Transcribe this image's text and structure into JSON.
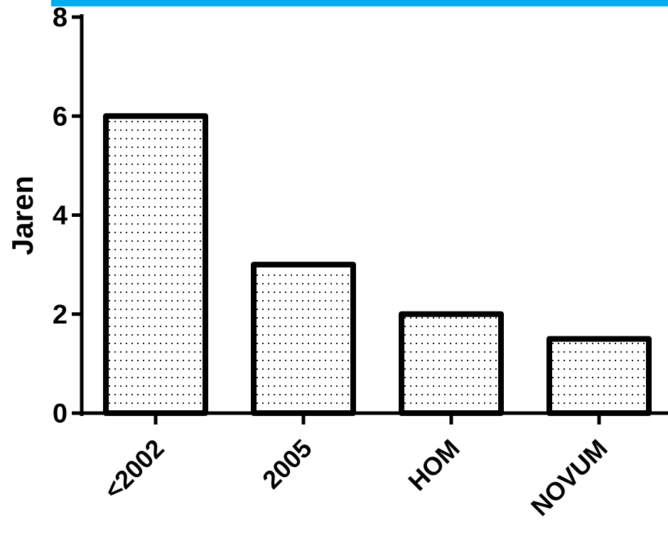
{
  "chart_data": {
    "type": "bar",
    "title": "",
    "xlabel": "",
    "ylabel": "Jaren",
    "categories": [
      "<2002",
      "2005",
      "HOM",
      "NOVUM"
    ],
    "values": [
      6,
      3,
      2,
      1.5
    ],
    "ylim": [
      0,
      8
    ],
    "yticks": [
      0,
      2,
      4,
      6,
      8
    ],
    "grid": false,
    "bar_fill": "dotted",
    "colors": {
      "accent_bar": "#00AEEF",
      "bar_edge": "#000000",
      "bar_fill_bg": "#ffffff"
    }
  }
}
